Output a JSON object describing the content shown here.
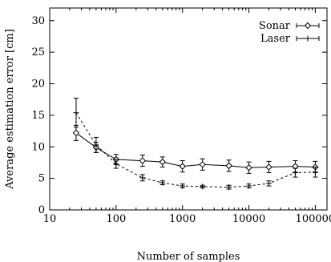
{
  "chart_data": {
    "type": "line",
    "x_scale": "log",
    "xlabel": "Number of samples",
    "ylabel": "Average estimation error [cm]",
    "xlim": [
      10,
      150000
    ],
    "ylim": [
      0,
      32
    ],
    "x_ticks": [
      {
        "value": 10,
        "label": "10"
      },
      {
        "value": 100,
        "label": "100"
      },
      {
        "value": 1000,
        "label": "1000"
      },
      {
        "value": 10000,
        "label": "10000"
      },
      {
        "value": 100000,
        "label": "100000"
      }
    ],
    "y_ticks": [
      {
        "value": 0,
        "label": "0"
      },
      {
        "value": 5,
        "label": "5"
      },
      {
        "value": 10,
        "label": "10"
      },
      {
        "value": 15,
        "label": "15"
      },
      {
        "value": 20,
        "label": "20"
      },
      {
        "value": 25,
        "label": "25"
      },
      {
        "value": 30,
        "label": "30"
      }
    ],
    "legend_position": "top-right",
    "grid": false,
    "series": [
      {
        "name": "Sonar",
        "line_style": "solid",
        "marker": "diamond",
        "color": "#000000",
        "points": [
          {
            "x": 25,
            "y": 12.2,
            "err": 1.2
          },
          {
            "x": 50,
            "y": 9.9,
            "err": 0.8
          },
          {
            "x": 100,
            "y": 8.0,
            "err": 0.8
          },
          {
            "x": 250,
            "y": 7.8,
            "err": 0.9
          },
          {
            "x": 500,
            "y": 7.6,
            "err": 0.8
          },
          {
            "x": 1000,
            "y": 6.9,
            "err": 0.9
          },
          {
            "x": 2000,
            "y": 7.2,
            "err": 0.9
          },
          {
            "x": 5000,
            "y": 7.0,
            "err": 0.9
          },
          {
            "x": 10000,
            "y": 6.7,
            "err": 0.9
          },
          {
            "x": 20000,
            "y": 6.8,
            "err": 0.9
          },
          {
            "x": 50000,
            "y": 6.9,
            "err": 0.9
          },
          {
            "x": 100000,
            "y": 6.8,
            "err": 0.9
          }
        ]
      },
      {
        "name": "Laser",
        "line_style": "dashed",
        "marker": "plus",
        "color": "#000000",
        "points": [
          {
            "x": 25,
            "y": 15.4,
            "err": 2.3
          },
          {
            "x": 50,
            "y": 10.3,
            "err": 1.2
          },
          {
            "x": 100,
            "y": 7.3,
            "err": 0.7
          },
          {
            "x": 250,
            "y": 5.1,
            "err": 0.5
          },
          {
            "x": 500,
            "y": 4.3,
            "err": 0.3
          },
          {
            "x": 1000,
            "y": 3.8,
            "err": 0.3
          },
          {
            "x": 2000,
            "y": 3.7,
            "err": 0.2
          },
          {
            "x": 5000,
            "y": 3.6,
            "err": 0.3
          },
          {
            "x": 10000,
            "y": 3.8,
            "err": 0.3
          },
          {
            "x": 20000,
            "y": 4.2,
            "err": 0.4
          },
          {
            "x": 50000,
            "y": 5.9,
            "err": 0.7
          },
          {
            "x": 100000,
            "y": 6.0,
            "err": 0.8
          }
        ]
      }
    ]
  }
}
